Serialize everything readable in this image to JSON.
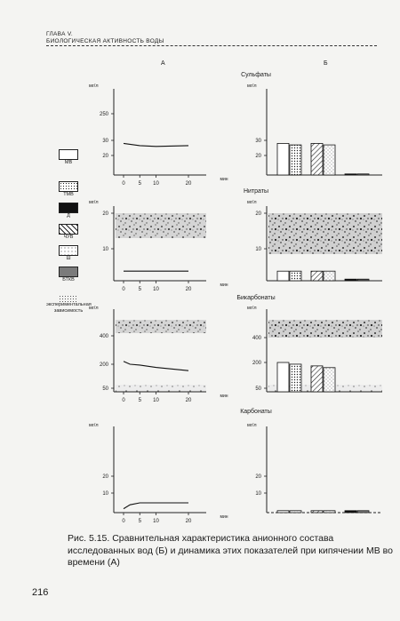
{
  "header": {
    "chapter": "ГЛАВА V.",
    "running_title": "БИОЛОГИЧЕСКАЯ АКТИВНОСТЬ ВОДЫ"
  },
  "columns": {
    "left": "А",
    "right": "Б"
  },
  "legend": [
    {
      "label": "MB",
      "pattern": "white"
    },
    {
      "label": "ТМВ",
      "pattern": "dots"
    },
    {
      "label": "Д",
      "pattern": "black"
    },
    {
      "label": "ЧУВ",
      "pattern": "hatch"
    },
    {
      "label": "Ш",
      "pattern": "sparse"
    },
    {
      "label": "БТКВ",
      "pattern": "dense"
    },
    {
      "label": "экспериментальная зависимость",
      "pattern": "none"
    }
  ],
  "colors": {
    "ink": "#1a1a1a",
    "paper": "#f4f4f2"
  },
  "chart_data": [
    {
      "type": "line",
      "title": "Сульфаты",
      "ylabel": "мг/л",
      "xlabel": "мин",
      "x_ticks": [
        "0",
        "5",
        "10",
        "20"
      ],
      "y_ticks": [
        "20",
        "30",
        "250"
      ],
      "series": [
        {
          "x": [
            0,
            5,
            10,
            20
          ],
          "y": [
            28,
            26.5,
            26,
            26.5
          ]
        }
      ]
    },
    {
      "type": "bar",
      "title": "Сульфаты",
      "ylabel": "мг/л",
      "y_ticks": [
        "20",
        "30"
      ],
      "categories": [
        "MB",
        "ТМВ",
        "ЧУВ",
        "Ш",
        "Д",
        "БТКВ"
      ],
      "values": [
        28,
        27,
        28,
        27,
        2,
        2
      ]
    },
    {
      "type": "line",
      "title": "Нитраты",
      "ylabel": "мг/л",
      "xlabel": "мин",
      "x_ticks": [
        "0",
        "5",
        "10",
        "20"
      ],
      "y_ticks": [
        "10",
        "20"
      ],
      "series": [
        {
          "x": [
            0,
            5,
            10,
            20
          ],
          "y": [
            3,
            3,
            3,
            3
          ]
        }
      ]
    },
    {
      "type": "bar",
      "title": "Нитраты",
      "ylabel": "мг/л",
      "y_ticks": [
        "10",
        "20"
      ],
      "categories": [
        "MB",
        "ТМВ",
        "ЧУВ",
        "Ш",
        "Д",
        "БТКВ"
      ],
      "values": [
        3,
        3,
        3,
        3,
        0.5,
        0.5
      ]
    },
    {
      "type": "line",
      "title": "Бикарбонаты",
      "ylabel": "мг/л",
      "xlabel": "мин",
      "x_ticks": [
        "0",
        "5",
        "10",
        "20"
      ],
      "y_ticks": [
        "50",
        "200",
        "400"
      ],
      "series": [
        {
          "x": [
            0,
            2,
            5,
            10,
            20
          ],
          "y": [
            220,
            200,
            195,
            180,
            160
          ]
        }
      ]
    },
    {
      "type": "bar",
      "title": "Бикарбонаты",
      "ylabel": "мг/л",
      "y_ticks": [
        "50",
        "200",
        "400"
      ],
      "categories": [
        "MB",
        "ТМВ",
        "ЧУВ",
        "Ш"
      ],
      "values": [
        200,
        190,
        180,
        170
      ]
    },
    {
      "type": "line",
      "title": "Карбонаты",
      "ylabel": "мг/л",
      "xlabel": "мин",
      "x_ticks": [
        "0",
        "5",
        "10",
        "20"
      ],
      "y_ticks": [
        "10",
        "20"
      ],
      "series": [
        {
          "x": [
            0,
            2,
            5,
            10,
            20
          ],
          "y": [
            2,
            4,
            5,
            5,
            5
          ]
        }
      ]
    },
    {
      "type": "bar",
      "title": "Карбонаты",
      "ylabel": "мг/л",
      "y_ticks": [
        "10",
        "20"
      ],
      "categories": [
        "MB",
        "ТМВ",
        "ЧУВ",
        "Ш",
        "Д",
        "БТКВ"
      ],
      "values": [
        1,
        1,
        1,
        1,
        1,
        1
      ]
    }
  ],
  "caption": "Рис. 5.15. Сравнительная характеристика анионного состава исследованных вод (Б) и динамика этих показателей при кипячении МВ во времени (А)",
  "page_number": "216"
}
